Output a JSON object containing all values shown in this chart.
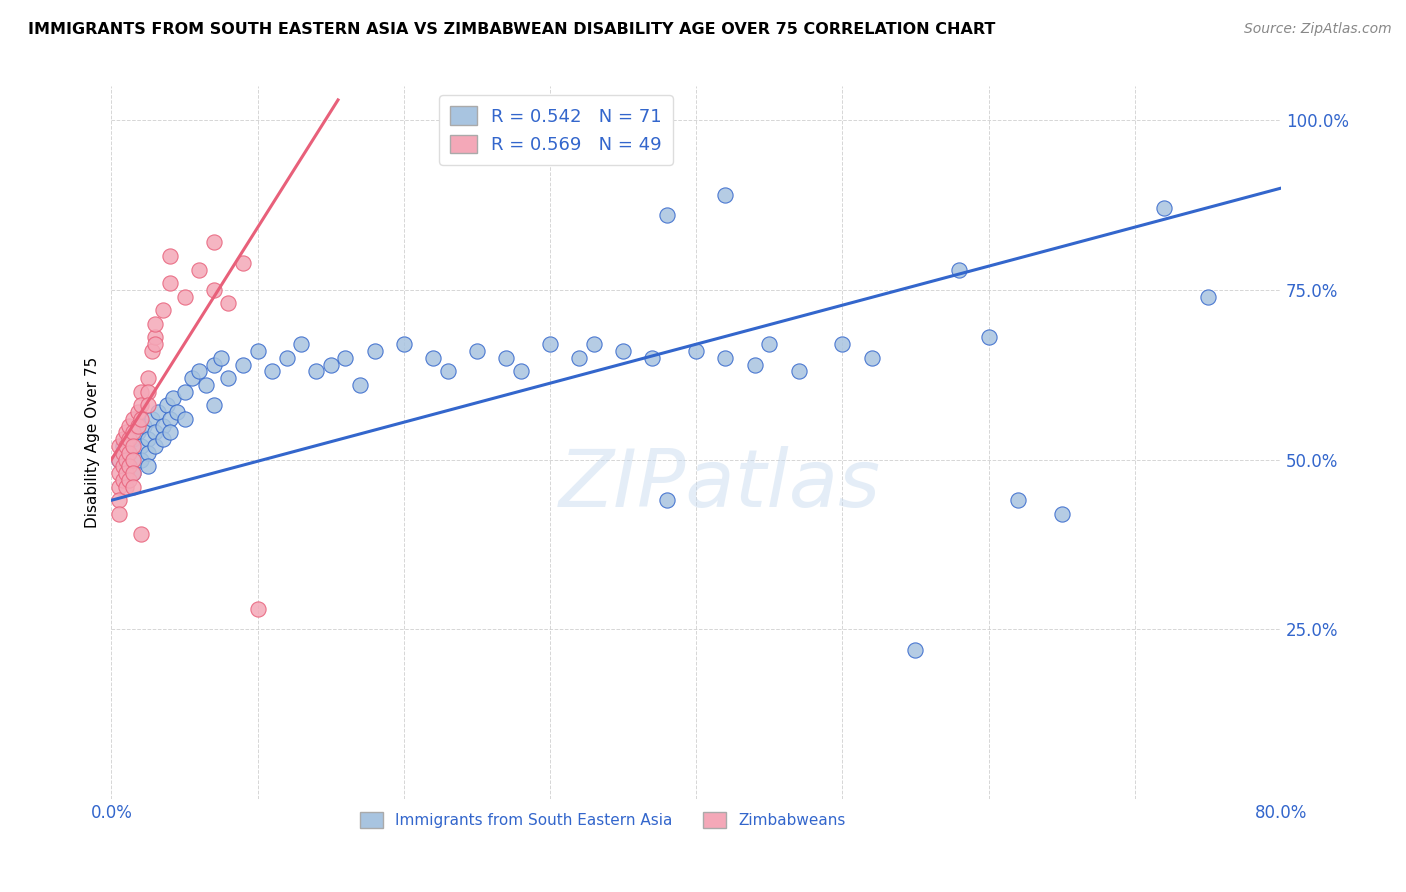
{
  "title": "IMMIGRANTS FROM SOUTH EASTERN ASIA VS ZIMBABWEAN DISABILITY AGE OVER 75 CORRELATION CHART",
  "source": "Source: ZipAtlas.com",
  "ylabel": "Disability Age Over 75",
  "watermark": "ZIPatlas",
  "blue_R": 0.542,
  "blue_N": 71,
  "pink_R": 0.569,
  "pink_N": 49,
  "blue_color": "#A8C4E0",
  "pink_color": "#F4A8B8",
  "blue_line_color": "#3366CC",
  "pink_line_color": "#E8607A",
  "legend_label_blue": "Immigrants from South Eastern Asia",
  "legend_label_pink": "Zimbabweans",
  "xlim": [
    0.0,
    0.8
  ],
  "ylim": [
    0.0,
    1.05
  ],
  "y_ticks": [
    0.25,
    0.5,
    0.75,
    1.0
  ],
  "y_tick_labels": [
    "25.0%",
    "50.0%",
    "75.0%",
    "100.0%"
  ],
  "blue_line_x0": 0.0,
  "blue_line_y0": 0.44,
  "blue_line_x1": 0.8,
  "blue_line_y1": 0.9,
  "pink_line_x0": 0.0,
  "pink_line_y0": 0.5,
  "pink_line_x1": 0.155,
  "pink_line_y1": 1.03,
  "blue_scatter_x": [
    0.005,
    0.008,
    0.01,
    0.012,
    0.015,
    0.015,
    0.018,
    0.02,
    0.02,
    0.022,
    0.025,
    0.025,
    0.025,
    0.028,
    0.03,
    0.03,
    0.032,
    0.035,
    0.035,
    0.038,
    0.04,
    0.04,
    0.042,
    0.045,
    0.05,
    0.05,
    0.055,
    0.06,
    0.065,
    0.07,
    0.07,
    0.075,
    0.08,
    0.09,
    0.1,
    0.11,
    0.12,
    0.13,
    0.14,
    0.15,
    0.16,
    0.17,
    0.18,
    0.2,
    0.22,
    0.23,
    0.25,
    0.27,
    0.28,
    0.3,
    0.32,
    0.33,
    0.35,
    0.37,
    0.38,
    0.4,
    0.42,
    0.44,
    0.45,
    0.47,
    0.5,
    0.52,
    0.55,
    0.58,
    0.6,
    0.38,
    0.42,
    0.62,
    0.65,
    0.72,
    0.75
  ],
  "blue_scatter_y": [
    0.5,
    0.52,
    0.51,
    0.49,
    0.53,
    0.48,
    0.54,
    0.52,
    0.5,
    0.55,
    0.53,
    0.51,
    0.49,
    0.56,
    0.54,
    0.52,
    0.57,
    0.55,
    0.53,
    0.58,
    0.56,
    0.54,
    0.59,
    0.57,
    0.6,
    0.56,
    0.62,
    0.63,
    0.61,
    0.64,
    0.58,
    0.65,
    0.62,
    0.64,
    0.66,
    0.63,
    0.65,
    0.67,
    0.63,
    0.64,
    0.65,
    0.61,
    0.66,
    0.67,
    0.65,
    0.63,
    0.66,
    0.65,
    0.63,
    0.67,
    0.65,
    0.67,
    0.66,
    0.65,
    0.44,
    0.66,
    0.65,
    0.64,
    0.67,
    0.63,
    0.67,
    0.65,
    0.22,
    0.78,
    0.68,
    0.86,
    0.89,
    0.44,
    0.42,
    0.87,
    0.74
  ],
  "pink_scatter_x": [
    0.005,
    0.005,
    0.005,
    0.005,
    0.005,
    0.005,
    0.008,
    0.008,
    0.008,
    0.008,
    0.01,
    0.01,
    0.01,
    0.01,
    0.01,
    0.012,
    0.012,
    0.012,
    0.012,
    0.012,
    0.015,
    0.015,
    0.015,
    0.015,
    0.015,
    0.015,
    0.018,
    0.018,
    0.02,
    0.02,
    0.02,
    0.02,
    0.025,
    0.025,
    0.025,
    0.028,
    0.03,
    0.03,
    0.03,
    0.035,
    0.04,
    0.04,
    0.05,
    0.06,
    0.07,
    0.07,
    0.08,
    0.09,
    0.1
  ],
  "pink_scatter_y": [
    0.5,
    0.52,
    0.48,
    0.46,
    0.44,
    0.42,
    0.53,
    0.51,
    0.49,
    0.47,
    0.54,
    0.52,
    0.5,
    0.48,
    0.46,
    0.55,
    0.53,
    0.51,
    0.49,
    0.47,
    0.56,
    0.54,
    0.52,
    0.5,
    0.48,
    0.46,
    0.57,
    0.55,
    0.6,
    0.58,
    0.56,
    0.39,
    0.62,
    0.6,
    0.58,
    0.66,
    0.68,
    0.7,
    0.67,
    0.72,
    0.76,
    0.8,
    0.74,
    0.78,
    0.82,
    0.75,
    0.73,
    0.79,
    0.28
  ]
}
